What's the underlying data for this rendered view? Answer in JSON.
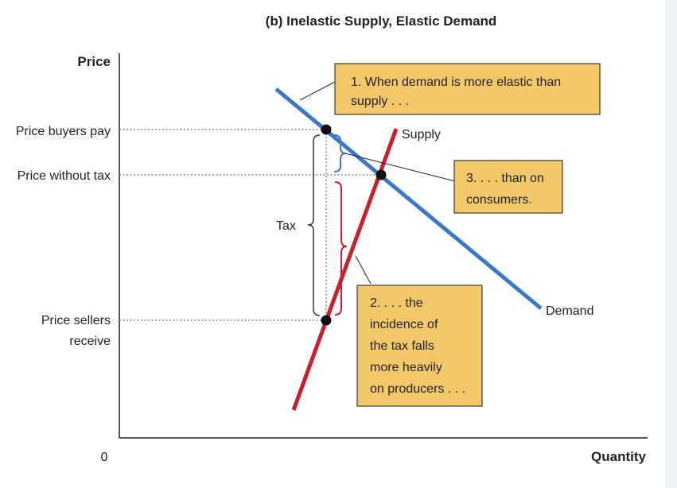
{
  "title": "(b) Inelastic Supply, Elastic Demand",
  "axes": {
    "y_label": "Price",
    "x_label": "Quantity",
    "origin_label": "0"
  },
  "y_ticks": {
    "buyers": "Price buyers pay",
    "without_tax": "Price without tax",
    "sellers_line1": "Price sellers",
    "sellers_line2": "receive"
  },
  "curves": {
    "supply": "Supply",
    "demand": "Demand"
  },
  "brace_labels": {
    "tax": "Tax"
  },
  "callouts": {
    "c1": {
      "line1": "1. When demand is more elastic than",
      "line2": "supply . . ."
    },
    "c2": {
      "line1": "2. . . . the",
      "line2": "incidence of",
      "line3": "the tax falls",
      "line4": "more heavily",
      "line5": "on producers . . ."
    },
    "c3": {
      "line1": "3. . . . than on",
      "line2": "consumers."
    }
  },
  "colors": {
    "demand": "#3a78c9",
    "supply": "#cc1f2e",
    "callout_fill": "#f3c86a",
    "callout_border": "#3a3a3a",
    "axis": "#222222",
    "right_strip": "#eef2f6"
  }
}
